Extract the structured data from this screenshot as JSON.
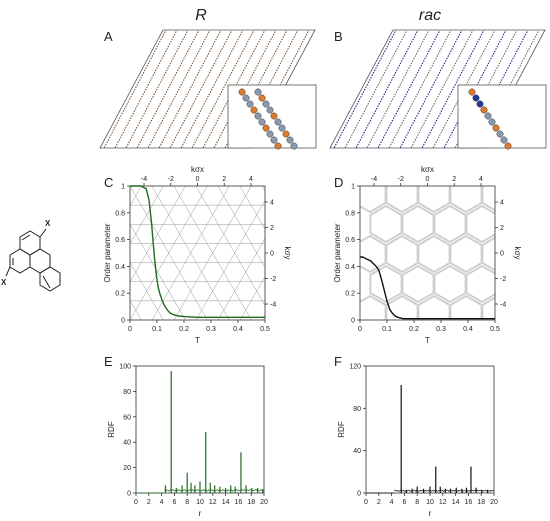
{
  "figure": {
    "column_titles": [
      "R",
      "rac"
    ],
    "panel_letters": [
      "A",
      "B",
      "C",
      "D",
      "E",
      "F"
    ],
    "molecule_substituent_label": "X",
    "colors": {
      "R_trace": "#1f6b1f",
      "rac_trace": "#111111",
      "lattice": "#8a8a8a"
    }
  },
  "chart_data": [
    {
      "panel": "C",
      "type": "line",
      "xlabel": "T",
      "ylabel": "Order parameter",
      "xlim": [
        0,
        0.5
      ],
      "ylim": [
        0,
        1
      ],
      "xticks": [
        "0",
        "0.1",
        "0.2",
        "0.3",
        "0.4",
        "0.5"
      ],
      "yticks": [
        "0",
        "0.2",
        "0.4",
        "0.6",
        "0.8",
        "1"
      ],
      "top_label": "kσx",
      "right_label": "kσy",
      "top_ticks": [
        "-4",
        "-2",
        "0",
        "2",
        "4"
      ],
      "right_ticks": [
        "4",
        "2",
        "0",
        "-2",
        "-4"
      ],
      "series": [
        {
          "color": "#1f6b1f",
          "x": [
            0.0,
            0.02,
            0.04,
            0.06,
            0.07,
            0.08,
            0.085,
            0.09,
            0.095,
            0.1,
            0.105,
            0.11,
            0.12,
            0.13,
            0.14,
            0.15,
            0.16,
            0.18,
            0.2,
            0.25,
            0.3,
            0.35,
            0.4,
            0.45,
            0.5
          ],
          "y": [
            1.0,
            1.0,
            1.0,
            0.98,
            0.9,
            0.72,
            0.6,
            0.48,
            0.38,
            0.3,
            0.24,
            0.2,
            0.14,
            0.1,
            0.07,
            0.05,
            0.04,
            0.03,
            0.025,
            0.02,
            0.02,
            0.02,
            0.02,
            0.02,
            0.02
          ]
        }
      ]
    },
    {
      "panel": "D",
      "type": "line",
      "xlabel": "T",
      "ylabel": "Order parameter",
      "xlim": [
        0,
        0.5
      ],
      "ylim": [
        0,
        1
      ],
      "xticks": [
        "0",
        "0.1",
        "0.2",
        "0.3",
        "0.4",
        "0.5"
      ],
      "yticks": [
        "0",
        "0.2",
        "0.4",
        "0.6",
        "0.8",
        "1"
      ],
      "top_label": "kσx",
      "right_label": "kσy",
      "top_ticks": [
        "-4",
        "-2",
        "0",
        "2",
        "4"
      ],
      "right_ticks": [
        "4",
        "2",
        "0",
        "-2",
        "-4"
      ],
      "series": [
        {
          "color": "#111111",
          "x": [
            0.0,
            0.01,
            0.02,
            0.03,
            0.04,
            0.05,
            0.06,
            0.07,
            0.08,
            0.09,
            0.1,
            0.11,
            0.12,
            0.13,
            0.14,
            0.16,
            0.2,
            0.3,
            0.4,
            0.5
          ],
          "y": [
            0.47,
            0.47,
            0.46,
            0.45,
            0.44,
            0.42,
            0.4,
            0.37,
            0.3,
            0.22,
            0.14,
            0.08,
            0.05,
            0.03,
            0.02,
            0.01,
            0.01,
            0.01,
            0.01,
            0.01
          ]
        }
      ]
    },
    {
      "panel": "E",
      "type": "line",
      "xlabel": "r",
      "ylabel": "RDF",
      "xlim": [
        0,
        20
      ],
      "ylim": [
        0,
        100
      ],
      "xticks": [
        "0",
        "2",
        "4",
        "6",
        "8",
        "10",
        "12",
        "14",
        "16",
        "18",
        "20"
      ],
      "yticks": [
        "0",
        "20",
        "40",
        "60",
        "80",
        "100"
      ],
      "series": [
        {
          "color": "#1f6b1f",
          "peaks": [
            [
              4.6,
              6
            ],
            [
              5.5,
              96
            ],
            [
              6.3,
              4
            ],
            [
              7.2,
              6
            ],
            [
              8.0,
              16
            ],
            [
              8.6,
              8
            ],
            [
              9.2,
              6
            ],
            [
              10.0,
              9
            ],
            [
              10.9,
              48
            ],
            [
              11.6,
              8
            ],
            [
              12.3,
              6
            ],
            [
              13.1,
              5
            ],
            [
              14.0,
              4
            ],
            [
              14.8,
              6
            ],
            [
              15.5,
              5
            ],
            [
              16.4,
              32
            ],
            [
              17.2,
              6
            ],
            [
              18.1,
              4
            ],
            [
              19.0,
              4
            ],
            [
              19.8,
              3
            ]
          ]
        }
      ]
    },
    {
      "panel": "F",
      "type": "line",
      "xlabel": "r",
      "ylabel": "RDF",
      "xlim": [
        0,
        20
      ],
      "ylim": [
        0,
        120
      ],
      "xticks": [
        "0",
        "2",
        "4",
        "6",
        "8",
        "10",
        "12",
        "14",
        "16",
        "18",
        "20"
      ],
      "yticks": [
        "0",
        "40",
        "80",
        "120"
      ],
      "series": [
        {
          "color": "#111111",
          "peaks": [
            [
              5.5,
              102
            ],
            [
              6.3,
              3
            ],
            [
              7.2,
              4
            ],
            [
              8.0,
              6
            ],
            [
              9.0,
              4
            ],
            [
              10.0,
              6
            ],
            [
              10.9,
              25
            ],
            [
              11.6,
              6
            ],
            [
              12.4,
              4
            ],
            [
              13.2,
              4
            ],
            [
              14.1,
              5
            ],
            [
              15.0,
              4
            ],
            [
              15.7,
              5
            ],
            [
              16.4,
              25
            ],
            [
              17.2,
              5
            ],
            [
              18.1,
              3
            ],
            [
              19.0,
              3
            ]
          ]
        }
      ]
    }
  ]
}
